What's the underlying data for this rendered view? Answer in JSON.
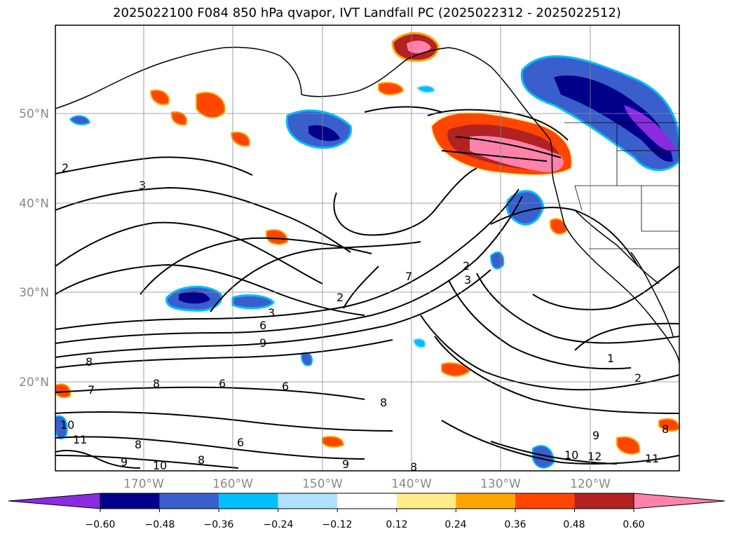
{
  "title": "2025022100 F084 850 hPa qvapor, IVT Landfall PC (2025022312 - 2025022512)",
  "lat_labels": [
    "50°N",
    "40°N",
    "30°N",
    "20°N"
  ],
  "lon_labels": [
    "170°W",
    "160°W",
    "150°W",
    "140°W",
    "130°W",
    "120°W"
  ],
  "colorbar": {
    "colors": [
      "#8a2be2",
      "#00008b",
      "#3a5fcd",
      "#00bfff",
      "#b0e2ff",
      "#ffffff",
      "#ffec8b",
      "#ffa500",
      "#ff4500",
      "#b22222",
      "#ff82ab"
    ],
    "tick_labels": [
      "−0.60",
      "−0.48",
      "−0.36",
      "−0.24",
      "−0.12",
      "0.12",
      "0.24",
      "0.36",
      "0.48",
      "0.60"
    ]
  },
  "contour_labels": [
    "2",
    "3",
    "2",
    "3",
    "6",
    "9",
    "8",
    "8",
    "6",
    "6",
    "8",
    "10",
    "11",
    "9",
    "8",
    "10",
    "8",
    "7",
    "9",
    "8",
    "3",
    "2",
    "1",
    "2",
    "9",
    "10",
    "12",
    "11",
    "8",
    "7",
    "6"
  ]
}
